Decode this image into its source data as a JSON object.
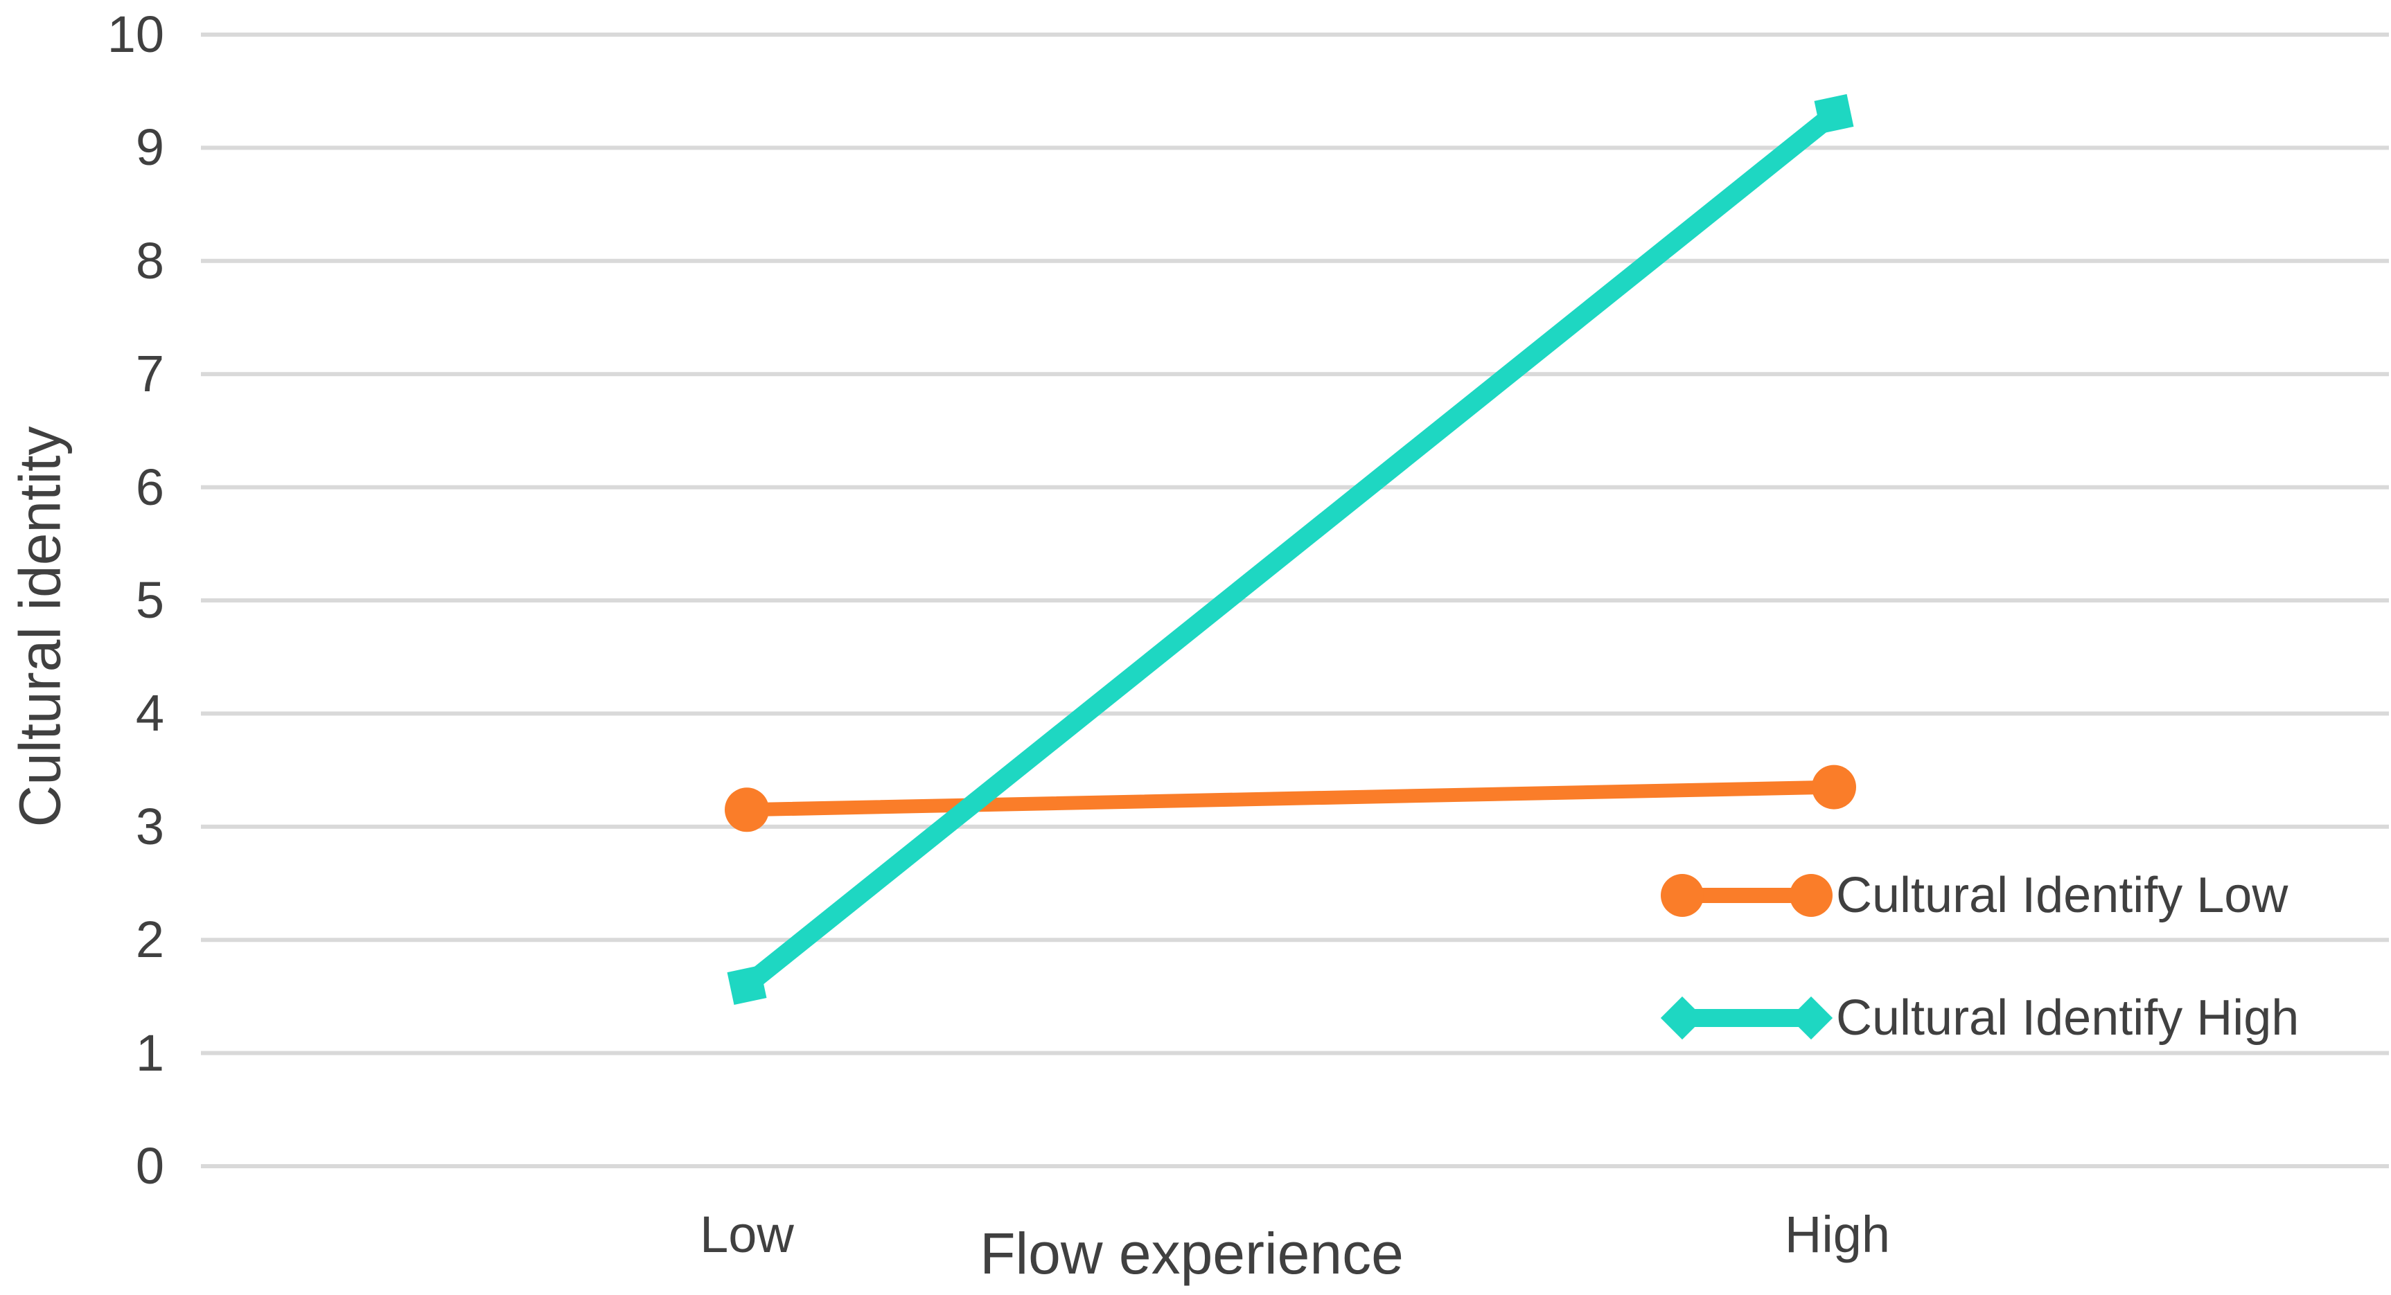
{
  "chart_data": {
    "type": "line",
    "title": "",
    "categories": [
      "Low",
      "High"
    ],
    "series": [
      {
        "name": "Cultural Identify Low",
        "values": [
          3.15,
          3.35
        ],
        "color": "#FA7D29",
        "marker": "circle",
        "line_width": 20
      },
      {
        "name": "Cultural Identify High",
        "values": [
          1.6,
          9.3
        ],
        "color": "#1ED7C2",
        "marker": "diamond",
        "line_width": 28
      }
    ],
    "xlabel": "Flow experience",
    "ylabel": "Cultural identity",
    "ylim": [
      0,
      10
    ],
    "yticks": [
      0,
      1,
      2,
      3,
      4,
      5,
      6,
      7,
      8,
      9,
      10
    ],
    "grid": true,
    "gridline_color": "#D9D9D9",
    "text_color": "#404040",
    "background": "#FFFFFF",
    "legend_position": "inside-right"
  }
}
